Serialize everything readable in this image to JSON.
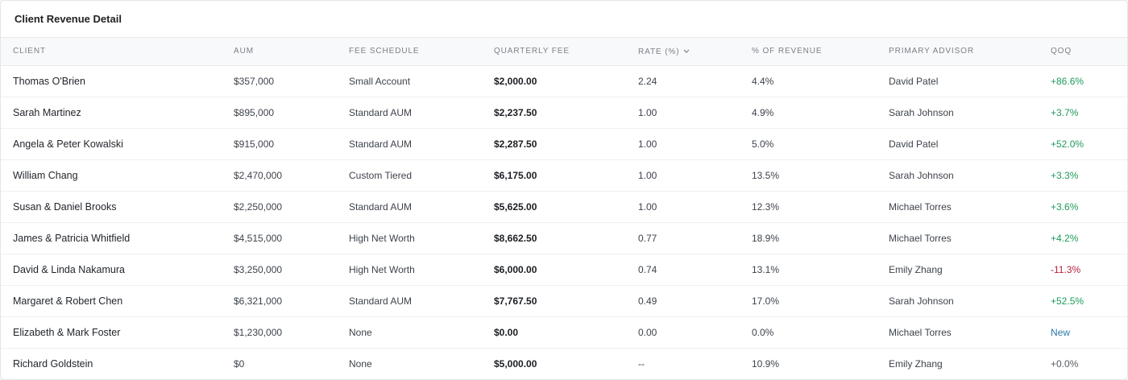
{
  "card": {
    "title": "Client Revenue Detail"
  },
  "columns": {
    "client": "CLIENT",
    "aum": "AUM",
    "fee_schedule": "FEE SCHEDULE",
    "quarterly_fee": "QUARTERLY FEE",
    "rate": "RATE (%)",
    "pct_revenue": "% OF REVENUE",
    "advisor": "PRIMARY ADVISOR",
    "qoq": "QOQ"
  },
  "sort": {
    "column": "rate",
    "direction": "desc",
    "icon": "chevron-down-icon"
  },
  "colors": {
    "positive": "#1e9a5a",
    "negative": "#b2243b",
    "new": "#2a7aa6"
  },
  "rows": [
    {
      "client": "Thomas O'Brien",
      "aum": "$357,000",
      "fee_schedule": "Small Account",
      "quarterly_fee": "$2,000.00",
      "rate": "2.24",
      "pct_revenue": "4.4%",
      "advisor": "David Patel",
      "qoq": "+86.6%",
      "qoq_kind": "pos"
    },
    {
      "client": "Sarah Martinez",
      "aum": "$895,000",
      "fee_schedule": "Standard AUM",
      "quarterly_fee": "$2,237.50",
      "rate": "1.00",
      "pct_revenue": "4.9%",
      "advisor": "Sarah Johnson",
      "qoq": "+3.7%",
      "qoq_kind": "pos"
    },
    {
      "client": "Angela & Peter Kowalski",
      "aum": "$915,000",
      "fee_schedule": "Standard AUM",
      "quarterly_fee": "$2,287.50",
      "rate": "1.00",
      "pct_revenue": "5.0%",
      "advisor": "David Patel",
      "qoq": "+52.0%",
      "qoq_kind": "pos"
    },
    {
      "client": "William Chang",
      "aum": "$2,470,000",
      "fee_schedule": "Custom Tiered",
      "quarterly_fee": "$6,175.00",
      "rate": "1.00",
      "pct_revenue": "13.5%",
      "advisor": "Sarah Johnson",
      "qoq": "+3.3%",
      "qoq_kind": "pos"
    },
    {
      "client": "Susan & Daniel Brooks",
      "aum": "$2,250,000",
      "fee_schedule": "Standard AUM",
      "quarterly_fee": "$5,625.00",
      "rate": "1.00",
      "pct_revenue": "12.3%",
      "advisor": "Michael Torres",
      "qoq": "+3.6%",
      "qoq_kind": "pos"
    },
    {
      "client": "James & Patricia Whitfield",
      "aum": "$4,515,000",
      "fee_schedule": "High Net Worth",
      "quarterly_fee": "$8,662.50",
      "rate": "0.77",
      "pct_revenue": "18.9%",
      "advisor": "Michael Torres",
      "qoq": "+4.2%",
      "qoq_kind": "pos"
    },
    {
      "client": "David & Linda Nakamura",
      "aum": "$3,250,000",
      "fee_schedule": "High Net Worth",
      "quarterly_fee": "$6,000.00",
      "rate": "0.74",
      "pct_revenue": "13.1%",
      "advisor": "Emily Zhang",
      "qoq": "-11.3%",
      "qoq_kind": "neg"
    },
    {
      "client": "Margaret & Robert Chen",
      "aum": "$6,321,000",
      "fee_schedule": "Standard AUM",
      "quarterly_fee": "$7,767.50",
      "rate": "0.49",
      "pct_revenue": "17.0%",
      "advisor": "Sarah Johnson",
      "qoq": "+52.5%",
      "qoq_kind": "pos"
    },
    {
      "client": "Elizabeth & Mark Foster",
      "aum": "$1,230,000",
      "fee_schedule": "None",
      "quarterly_fee": "$0.00",
      "rate": "0.00",
      "pct_revenue": "0.0%",
      "advisor": "Michael Torres",
      "qoq": "New",
      "qoq_kind": "new"
    },
    {
      "client": "Richard Goldstein",
      "aum": "$0",
      "fee_schedule": "None",
      "quarterly_fee": "$5,000.00",
      "rate": "--",
      "pct_revenue": "10.9%",
      "advisor": "Emily Zhang",
      "qoq": "+0.0%",
      "qoq_kind": "neutral"
    }
  ]
}
